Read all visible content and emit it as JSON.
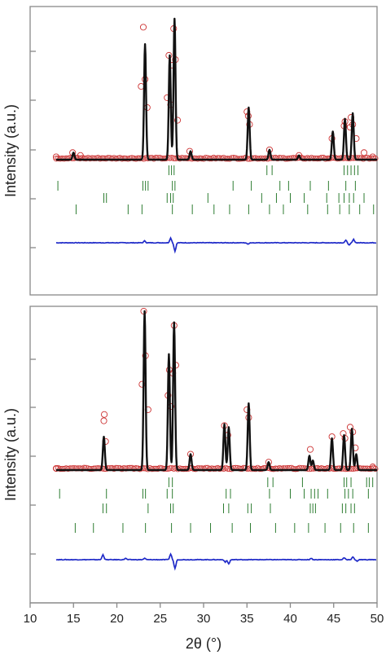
{
  "chart_data": {
    "type": "line",
    "xlabel": "2θ (°)",
    "xlim": [
      10,
      50
    ],
    "x_ticks": [
      "10",
      "15",
      "20",
      "25",
      "30",
      "35",
      "40",
      "45",
      "50"
    ],
    "panels": [
      {
        "ylabel": "Intensity (a.u.)",
        "y_tick_count": 5,
        "series": [
          {
            "role": "observed",
            "marker": "open-circle",
            "color": "#cc3333",
            "x": [
              13,
              14.9,
              15.8,
              22.8,
              23.05,
              23.25,
              23.5,
              25.8,
              26.0,
              26.2,
              26.4,
              26.55,
              26.75,
              27.0,
              28.4,
              35.0,
              35.15,
              35.3,
              37.6,
              41.0,
              44.8,
              46.2,
              46.3,
              46.9,
              47.0,
              47.2,
              47.6,
              48.5,
              49.5
            ],
            "y": [
              0.02,
              0.05,
              0.03,
              0.52,
              0.94,
              0.57,
              0.37,
              0.44,
              0.74,
              0.39,
              0.67,
              0.93,
              0.71,
              0.28,
              0.06,
              0.34,
              0.31,
              0.25,
              0.07,
              0.03,
              0.15,
              0.24,
              0.27,
              0.23,
              0.3,
              0.25,
              0.15,
              0.05,
              0.02
            ]
          },
          {
            "role": "calculated",
            "color": "#111111",
            "profile": [
              {
                "center": 15.0,
                "height": 0.05
              },
              {
                "center": 23.25,
                "height": 0.82
              },
              {
                "center": 26.1,
                "height": 0.74
              },
              {
                "center": 26.65,
                "height": 1.0
              },
              {
                "center": 28.5,
                "height": 0.06
              },
              {
                "center": 35.2,
                "height": 0.37
              },
              {
                "center": 37.6,
                "height": 0.07
              },
              {
                "center": 41.0,
                "height": 0.03
              },
              {
                "center": 44.9,
                "height": 0.2
              },
              {
                "center": 46.3,
                "height": 0.29
              },
              {
                "center": 47.2,
                "height": 0.33
              }
            ]
          },
          {
            "role": "difference",
            "color": "#1f2ac8",
            "profile": [
              {
                "center": 23.2,
                "amplitude": 0.04
              },
              {
                "center": 26.2,
                "amplitude": 0.1
              },
              {
                "center": 26.7,
                "amplitude": -0.18
              },
              {
                "center": 35.1,
                "amplitude": -0.03
              },
              {
                "center": 46.4,
                "amplitude": 0.05
              },
              {
                "center": 46.8,
                "amplitude": -0.05
              },
              {
                "center": 47.3,
                "amplitude": 0.07
              }
            ]
          }
        ],
        "reflection_rows": [
          {
            "color": "#2e7d32",
            "positions": [
              26.0,
              26.3,
              26.6,
              37.3,
              37.9,
              46.2,
              46.6,
              47.0,
              47.4,
              47.8
            ]
          },
          {
            "color": "#2e7d32",
            "positions": [
              13.2,
              23.0,
              23.3,
              23.6,
              26.4,
              26.7,
              33.4,
              35.5,
              38.8,
              39.8,
              42.3,
              44.4,
              46.4,
              47.5
            ]
          },
          {
            "color": "#2e7d32",
            "positions": [
              18.5,
              18.8,
              25.8,
              26.2,
              26.5,
              30.5,
              36.7,
              38.4,
              40.0,
              41.6,
              44.2,
              45.6,
              46.2,
              46.8,
              47.3,
              48.5
            ]
          },
          {
            "color": "#2e7d32",
            "positions": [
              15.3,
              21.3,
              22.9,
              26.4,
              28.7,
              31.2,
              33.0,
              35.2,
              37.6,
              39.2,
              42.0,
              44.3,
              45.7,
              46.8,
              48.0,
              49.6
            ]
          }
        ]
      },
      {
        "ylabel": "Intensity (a.u.)",
        "y_tick_count": 5,
        "series": [
          {
            "role": "observed",
            "marker": "open-circle",
            "color": "#cc3333",
            "x": [
              13,
              18.5,
              18.55,
              18.7,
              22.9,
              23.1,
              23.3,
              23.6,
              25.9,
              26.05,
              26.25,
              26.45,
              26.6,
              26.8,
              28.5,
              32.4,
              32.8,
              35.0,
              35.2,
              37.5,
              42.3,
              44.8,
              46.1,
              46.3,
              46.9,
              47.2,
              47.5,
              49.5
            ],
            "y": [
              0.01,
              0.31,
              0.35,
              0.18,
              0.54,
              1.0,
              0.72,
              0.38,
              0.47,
              0.63,
              0.4,
              0.61,
              0.91,
              0.66,
              0.1,
              0.28,
              0.22,
              0.38,
              0.33,
              0.05,
              0.13,
              0.21,
              0.23,
              0.2,
              0.27,
              0.24,
              0.14,
              0.02
            ]
          },
          {
            "role": "calculated",
            "color": "#111111",
            "profile": [
              {
                "center": 18.5,
                "height": 0.21
              },
              {
                "center": 23.2,
                "height": 1.0
              },
              {
                "center": 26.0,
                "height": 0.73
              },
              {
                "center": 26.6,
                "height": 0.93
              },
              {
                "center": 28.5,
                "height": 0.1
              },
              {
                "center": 32.4,
                "height": 0.29
              },
              {
                "center": 32.9,
                "height": 0.27
              },
              {
                "center": 35.2,
                "height": 0.42
              },
              {
                "center": 37.5,
                "height": 0.05
              },
              {
                "center": 42.2,
                "height": 0.09
              },
              {
                "center": 42.6,
                "height": 0.06
              },
              {
                "center": 44.8,
                "height": 0.2
              },
              {
                "center": 46.2,
                "height": 0.22
              },
              {
                "center": 47.1,
                "height": 0.26
              },
              {
                "center": 47.6,
                "height": 0.1
              }
            ]
          },
          {
            "role": "difference",
            "color": "#1f2ac8",
            "profile": [
              {
                "center": 18.4,
                "amplitude": 0.11
              },
              {
                "center": 21.0,
                "amplitude": 0.03
              },
              {
                "center": 23.2,
                "amplitude": 0.03
              },
              {
                "center": 26.2,
                "amplitude": 0.12
              },
              {
                "center": 26.7,
                "amplitude": -0.19
              },
              {
                "center": 32.5,
                "amplitude": -0.05
              },
              {
                "center": 32.9,
                "amplitude": -0.09
              },
              {
                "center": 42.4,
                "amplitude": 0.03
              },
              {
                "center": 46.2,
                "amplitude": 0.04
              },
              {
                "center": 47.2,
                "amplitude": 0.06
              },
              {
                "center": 47.7,
                "amplitude": -0.03
              }
            ]
          }
        ],
        "reflection_rows": [
          {
            "color": "#2e7d32",
            "positions": [
              26.0,
              26.4,
              37.4,
              38.0,
              41.4,
              46.2,
              46.5,
              47.0,
              48.8,
              49.1,
              49.5
            ]
          },
          {
            "color": "#2e7d32",
            "positions": [
              13.4,
              18.8,
              23.0,
              23.3,
              25.8,
              26.4,
              32.6,
              33.1,
              37.6,
              40.0,
              41.6,
              42.4,
              42.8,
              43.2,
              44.3,
              46.3,
              46.7,
              47.2,
              49.0
            ]
          },
          {
            "color": "#2e7d32",
            "positions": [
              18.4,
              18.8,
              23.6,
              26.2,
              26.5,
              32.3,
              32.9,
              35.1,
              35.5,
              37.7,
              42.3,
              42.6,
              42.9,
              46.0,
              46.4,
              47.0,
              47.4
            ]
          },
          {
            "color": "#2e7d32",
            "positions": [
              15.2,
              17.3,
              20.7,
              23.3,
              26.3,
              28.5,
              30.8,
              33.3,
              35.4,
              38.3,
              40.5,
              42.1,
              44.0,
              45.8,
              47.3,
              49.0
            ]
          }
        ]
      }
    ]
  }
}
